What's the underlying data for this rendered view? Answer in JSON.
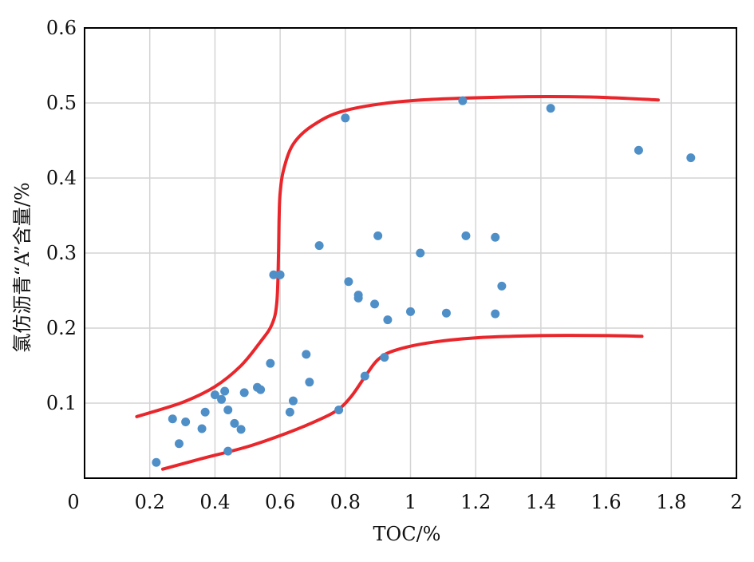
{
  "chart_data": {
    "type": "scatter",
    "xlabel": "TOC/%",
    "ylabel": "氯仿沥青“A”含量/%",
    "xlim": [
      0,
      2
    ],
    "ylim": [
      0,
      0.6
    ],
    "x_ticks": [
      "0",
      "0.2",
      "0.4",
      "0.6",
      "0.8",
      "1",
      "1.2",
      "1.4",
      "1.6",
      "1.8",
      "2"
    ],
    "y_ticks": [
      "0.1",
      "0.2",
      "0.3",
      "0.4",
      "0.5",
      "0.6"
    ],
    "grid": true,
    "colors": {
      "points": "#4f8fc8",
      "envelope": "#e8262b",
      "grid": "#d4d4d4",
      "frame": "#000000"
    },
    "series": [
      {
        "points": [
          [
            0.22,
            0.021
          ],
          [
            0.27,
            0.079
          ],
          [
            0.29,
            0.046
          ],
          [
            0.31,
            0.075
          ],
          [
            0.36,
            0.066
          ],
          [
            0.37,
            0.088
          ],
          [
            0.4,
            0.111
          ],
          [
            0.42,
            0.105
          ],
          [
            0.43,
            0.116
          ],
          [
            0.44,
            0.091
          ],
          [
            0.44,
            0.036
          ],
          [
            0.46,
            0.073
          ],
          [
            0.48,
            0.065
          ],
          [
            0.49,
            0.114
          ],
          [
            0.53,
            0.121
          ],
          [
            0.54,
            0.118
          ],
          [
            0.57,
            0.153
          ],
          [
            0.58,
            0.271
          ],
          [
            0.6,
            0.271
          ],
          [
            0.63,
            0.088
          ],
          [
            0.64,
            0.103
          ],
          [
            0.68,
            0.165
          ],
          [
            0.69,
            0.128
          ],
          [
            0.72,
            0.31
          ],
          [
            0.78,
            0.091
          ],
          [
            0.8,
            0.48
          ],
          [
            0.81,
            0.262
          ],
          [
            0.84,
            0.244
          ],
          [
            0.84,
            0.24
          ],
          [
            0.86,
            0.136
          ],
          [
            0.89,
            0.232
          ],
          [
            0.9,
            0.323
          ],
          [
            0.92,
            0.161
          ],
          [
            0.93,
            0.211
          ],
          [
            1.0,
            0.222
          ],
          [
            1.03,
            0.3
          ],
          [
            1.11,
            0.22
          ],
          [
            1.16,
            0.503
          ],
          [
            1.17,
            0.323
          ],
          [
            1.26,
            0.219
          ],
          [
            1.26,
            0.321
          ],
          [
            1.28,
            0.256
          ],
          [
            1.43,
            0.493
          ],
          [
            1.7,
            0.437
          ],
          [
            1.86,
            0.427
          ]
        ]
      }
    ],
    "curves": [
      {
        "points": [
          [
            0.16,
            0.082
          ],
          [
            0.3,
            0.101
          ],
          [
            0.4,
            0.122
          ],
          [
            0.48,
            0.15
          ],
          [
            0.54,
            0.182
          ],
          [
            0.575,
            0.205
          ],
          [
            0.59,
            0.235
          ],
          [
            0.595,
            0.3
          ],
          [
            0.597,
            0.35
          ],
          [
            0.6,
            0.38
          ],
          [
            0.61,
            0.41
          ],
          [
            0.64,
            0.445
          ],
          [
            0.7,
            0.47
          ],
          [
            0.8,
            0.49
          ],
          [
            1.0,
            0.503
          ],
          [
            1.3,
            0.508
          ],
          [
            1.55,
            0.508
          ],
          [
            1.76,
            0.504
          ]
        ]
      },
      {
        "points": [
          [
            0.24,
            0.012
          ],
          [
            0.35,
            0.025
          ],
          [
            0.5,
            0.042
          ],
          [
            0.62,
            0.06
          ],
          [
            0.72,
            0.078
          ],
          [
            0.78,
            0.092
          ],
          [
            0.82,
            0.11
          ],
          [
            0.86,
            0.135
          ],
          [
            0.9,
            0.158
          ],
          [
            0.95,
            0.17
          ],
          [
            1.05,
            0.18
          ],
          [
            1.2,
            0.187
          ],
          [
            1.4,
            0.19
          ],
          [
            1.6,
            0.19
          ],
          [
            1.71,
            0.189
          ]
        ]
      }
    ]
  }
}
